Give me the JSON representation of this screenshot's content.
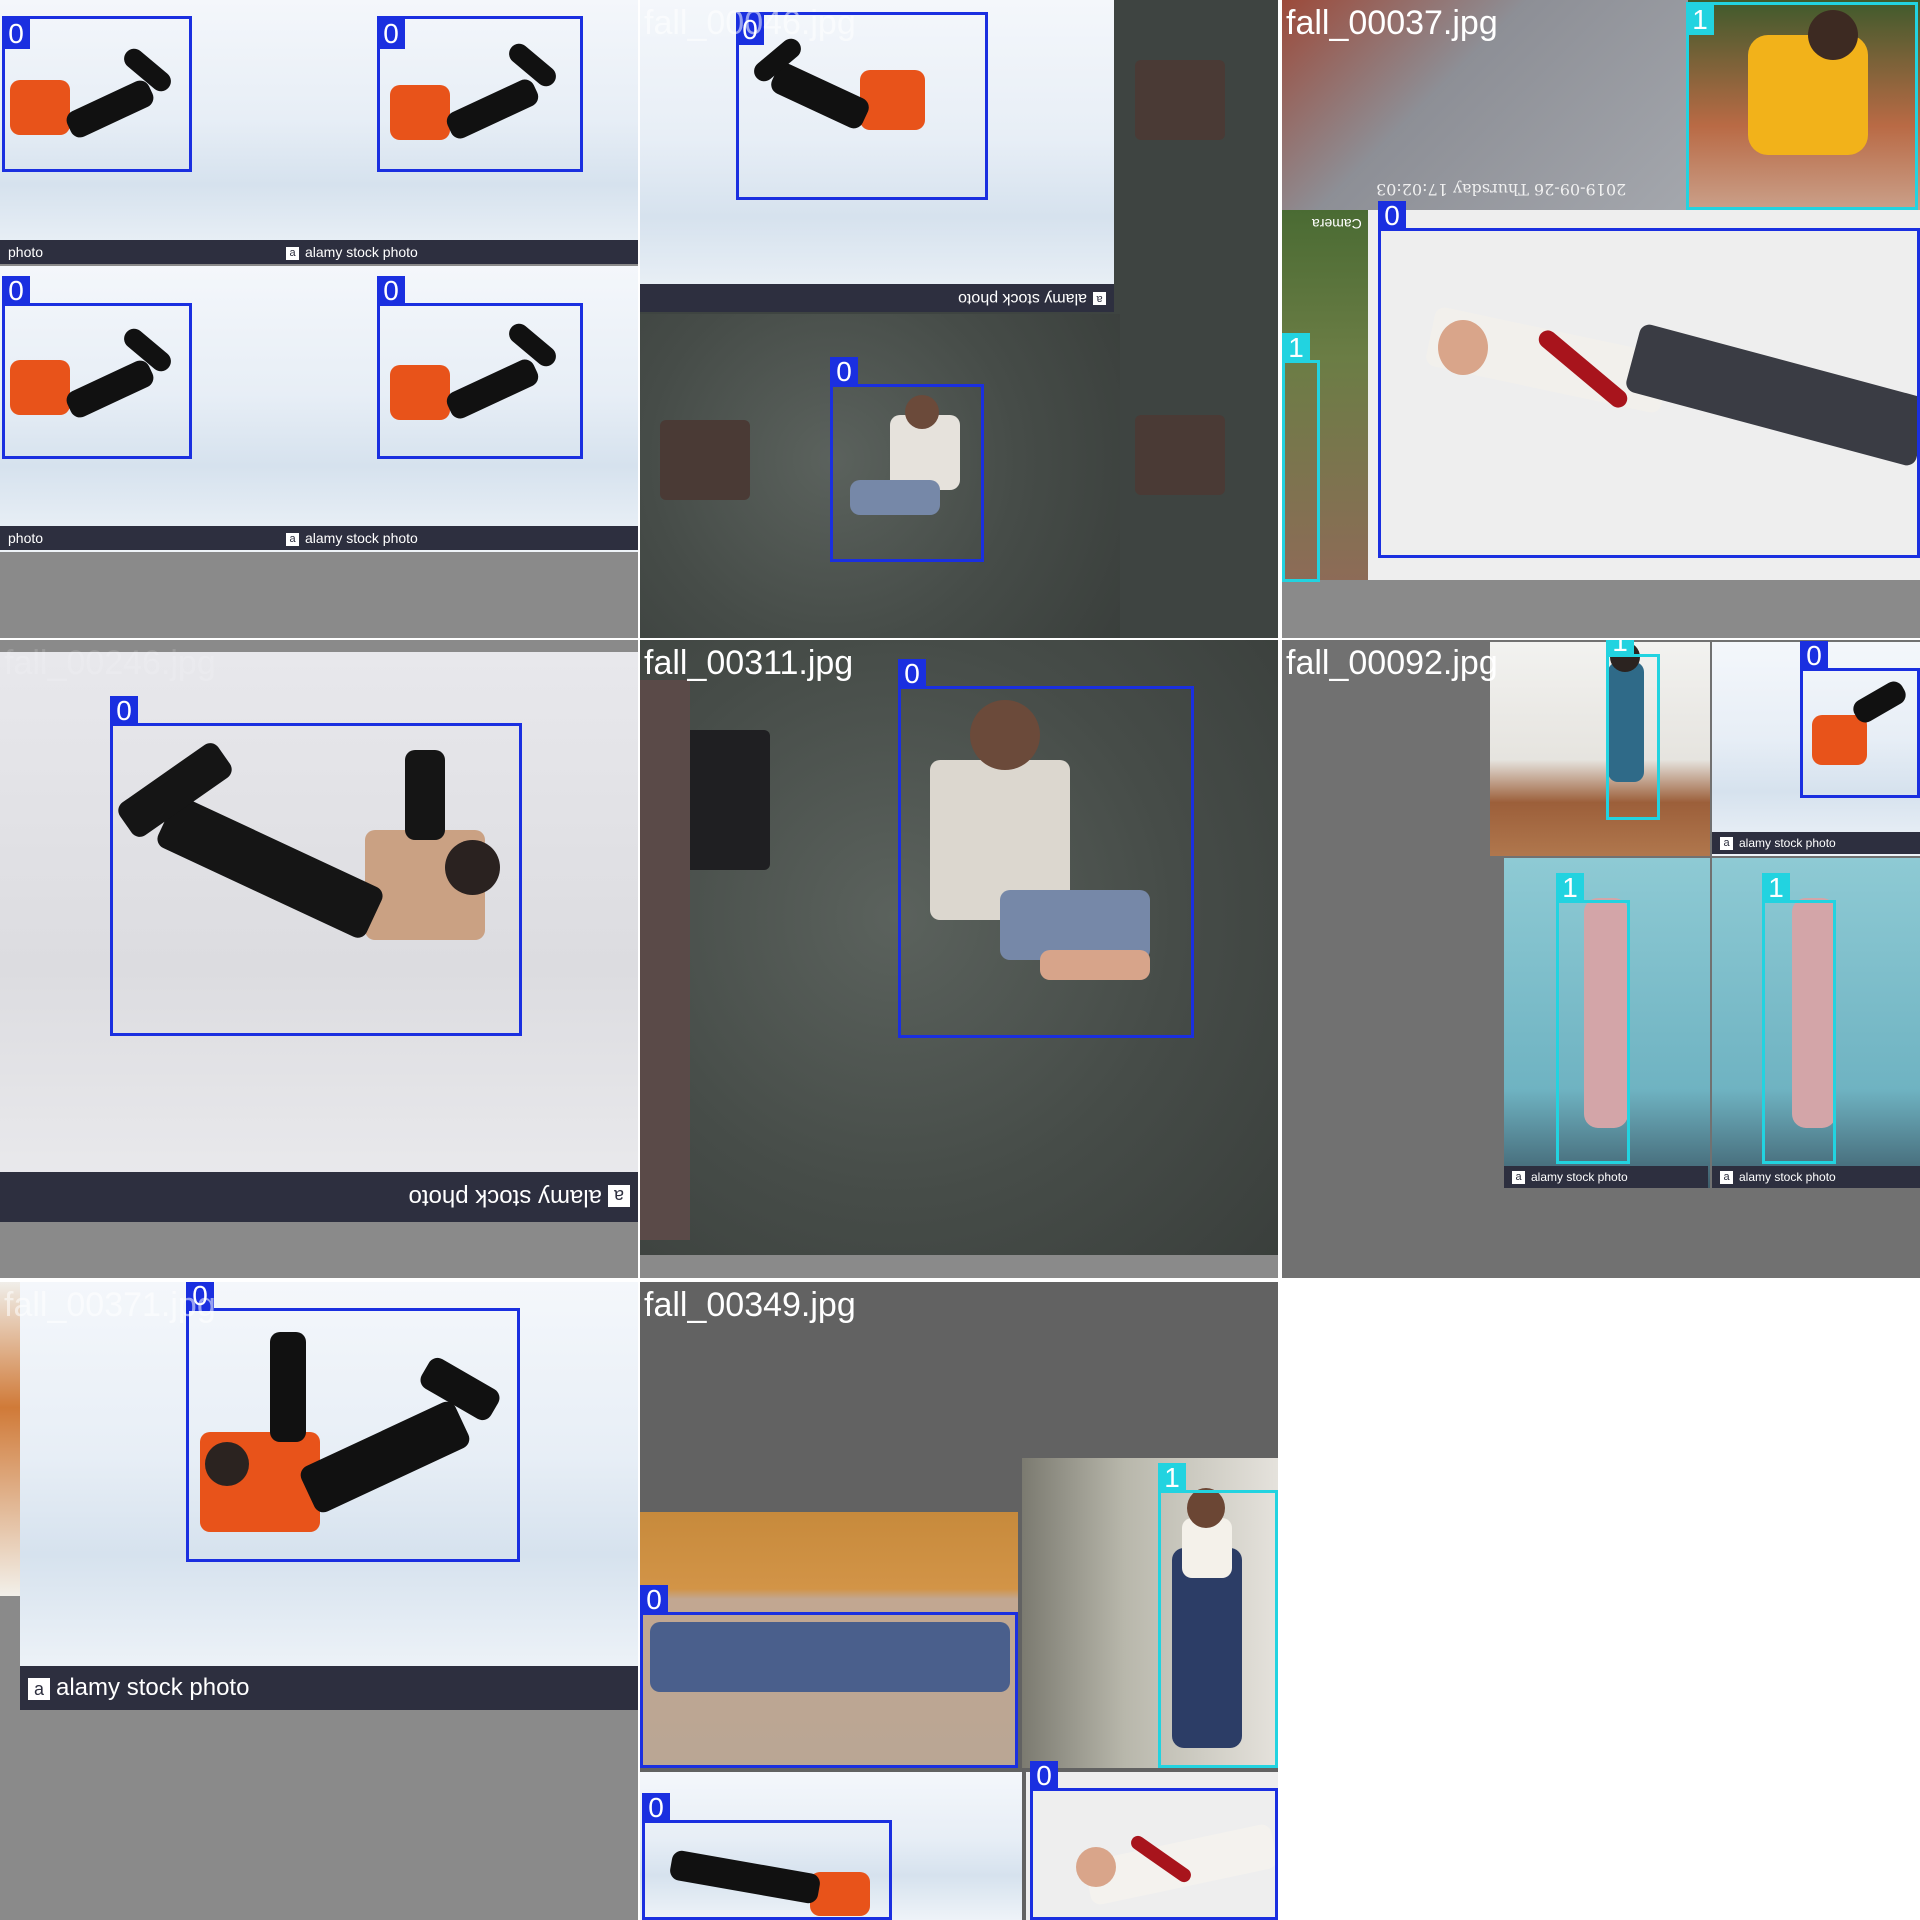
{
  "tiles": {
    "t1": {
      "filename": "",
      "banner_left": "photo",
      "banner_right": "alamy stock photo",
      "class_labels": [
        "0",
        "0",
        "0",
        "0"
      ]
    },
    "t2": {
      "filename": "fall_00046.jpg",
      "banner": "alamy stock photo",
      "class_labels": [
        "0",
        "0"
      ]
    },
    "t3": {
      "filename": "fall_00037.jpg",
      "timestamp": "2019-09-26 Thursday 17:02:03",
      "camera": "Camera",
      "class_labels": [
        "1",
        "0",
        "1"
      ]
    },
    "t4": {
      "filename": "fall_00246.jpg",
      "banner": "alamy stock photo",
      "class_labels": [
        "0"
      ]
    },
    "t5": {
      "filename": "fall_00311.jpg",
      "class_labels": [
        "0"
      ]
    },
    "t6": {
      "filename": "fall_00092.jpg",
      "banner": "alamy stock photo",
      "class_labels": [
        "1",
        "0",
        "1",
        "1"
      ]
    },
    "t7": {
      "filename": "fall_00371.jpg",
      "banner": "alamy stock photo",
      "class_labels": [
        "0"
      ]
    },
    "t8": {
      "filename": "fall_00349.jpg",
      "class_labels": [
        "0",
        "1",
        "0",
        "0"
      ]
    }
  },
  "colors": {
    "class_0": "#1a2fe0",
    "class_1": "#22d3e0",
    "tile_background": "#8a8a8a"
  }
}
